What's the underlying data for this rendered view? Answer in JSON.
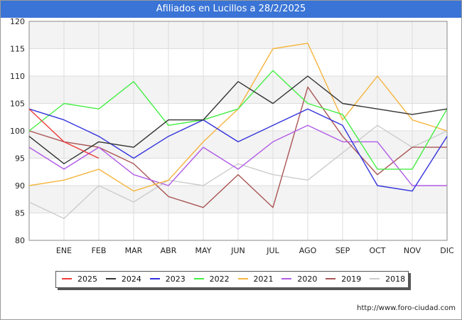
{
  "page": {
    "title": "Afiliados en Lucillos a 28/2/2025",
    "footer_url": "http://www.foro-ciudad.com"
  },
  "colors": {
    "title_bar": "#3a74d6",
    "plot_band": "#f3f3f3",
    "grid": "#dddddd"
  },
  "chart_data": {
    "type": "line",
    "title": "Afiliados en Lucillos a 28/2/2025",
    "categories": [
      "",
      "ENE",
      "FEB",
      "MAR",
      "ABR",
      "MAY",
      "JUN",
      "JUL",
      "AGO",
      "SEP",
      "OCT",
      "NOV",
      "DIC"
    ],
    "ylim": [
      80,
      120
    ],
    "yticks": [
      80,
      85,
      90,
      95,
      100,
      105,
      110,
      115,
      120
    ],
    "grid": true,
    "legend_position": "bottom",
    "series": [
      {
        "name": "2025",
        "color": "#ee3b3b",
        "values": [
          104,
          98,
          95,
          null,
          null,
          null,
          null,
          null,
          null,
          null,
          null,
          null,
          null
        ]
      },
      {
        "name": "2024",
        "color": "#333333",
        "values": [
          99,
          94,
          98,
          97,
          102,
          102,
          109,
          105,
          110,
          105,
          104,
          103,
          104
        ]
      },
      {
        "name": "2023",
        "color": "#3333dd",
        "values": [
          104,
          102,
          99,
          95,
          99,
          102,
          98,
          101,
          104,
          101,
          90,
          89,
          99
        ]
      },
      {
        "name": "2022",
        "color": "#44ee44",
        "values": [
          100,
          105,
          104,
          109,
          101,
          102,
          104,
          111,
          105,
          103,
          93,
          93,
          104
        ]
      },
      {
        "name": "2021",
        "color": "#f5b53f",
        "values": [
          90,
          91,
          93,
          89,
          91,
          98,
          104,
          115,
          116,
          102,
          110,
          102,
          100
        ]
      },
      {
        "name": "2020",
        "color": "#b05ce6",
        "values": [
          97,
          93,
          97,
          92,
          90,
          97,
          93,
          98,
          101,
          98,
          98,
          90,
          90
        ]
      },
      {
        "name": "2019",
        "color": "#aa5555",
        "values": [
          100,
          98,
          97,
          94,
          88,
          86,
          92,
          86,
          108,
          99,
          92,
          97,
          97
        ]
      },
      {
        "name": "2018",
        "color": "#cccccc",
        "values": [
          87,
          84,
          90,
          87,
          91,
          90,
          94,
          92,
          91,
          96,
          101,
          97,
          100
        ]
      }
    ]
  }
}
